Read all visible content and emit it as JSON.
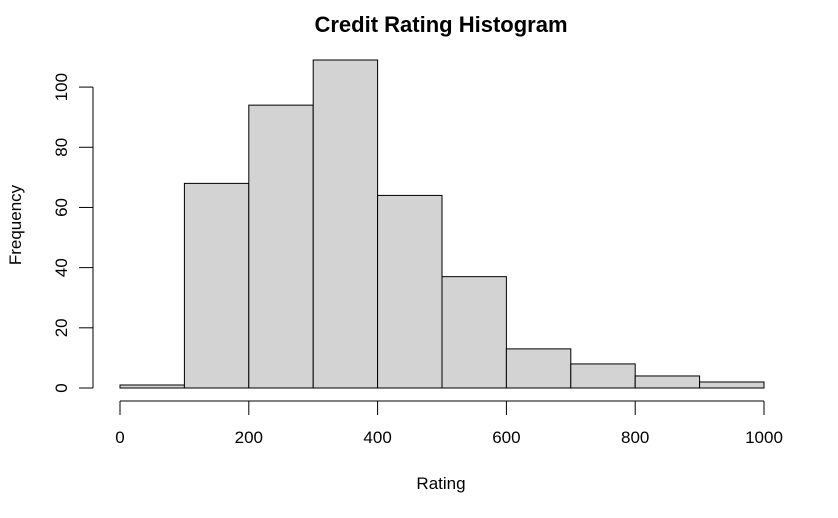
{
  "chart_data": {
    "type": "bar",
    "title": "Credit Rating Histogram",
    "xlabel": "Rating",
    "ylabel": "Frequency",
    "bins": [
      {
        "from": 0,
        "to": 100,
        "count": 1
      },
      {
        "from": 100,
        "to": 200,
        "count": 68
      },
      {
        "from": 200,
        "to": 300,
        "count": 94
      },
      {
        "from": 300,
        "to": 400,
        "count": 109
      },
      {
        "from": 400,
        "to": 500,
        "count": 64
      },
      {
        "from": 500,
        "to": 600,
        "count": 37
      },
      {
        "from": 600,
        "to": 700,
        "count": 13
      },
      {
        "from": 700,
        "to": 800,
        "count": 8
      },
      {
        "from": 800,
        "to": 900,
        "count": 4
      },
      {
        "from": 900,
        "to": 1000,
        "count": 2
      }
    ],
    "xlim": [
      0,
      1000
    ],
    "ylim": [
      0,
      109
    ],
    "x_ticks": [
      0,
      200,
      400,
      600,
      800,
      1000
    ],
    "y_ticks": [
      0,
      20,
      40,
      60,
      80,
      100
    ],
    "bar_fill": "#d3d3d3",
    "bar_stroke": "#000000",
    "grid": false,
    "legend": "none"
  }
}
